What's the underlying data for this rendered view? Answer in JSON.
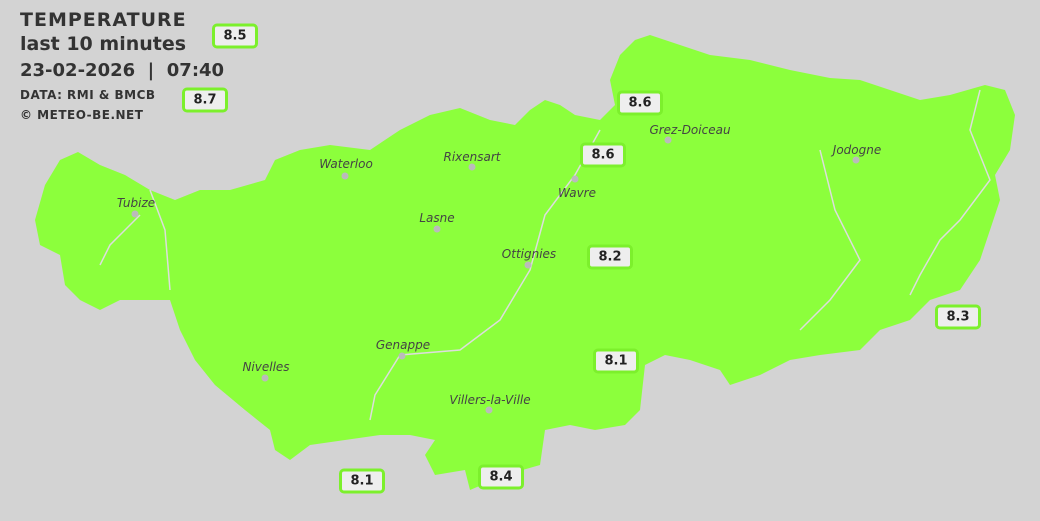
{
  "header": {
    "title": "TEMPERATURE",
    "period": "last 10 minutes",
    "datetime": "23-02-2026  |  07:40",
    "source": "DATA: RMI & BMCB",
    "copyright": "© METEO-BE.NET"
  },
  "colors": {
    "background": "#d3d3d3",
    "land": "#8cff3c",
    "station_border": "#7cf02c",
    "station_fill": "#eeeeee"
  },
  "cities": [
    {
      "name": "Waterloo"
    },
    {
      "name": "Rixensart"
    },
    {
      "name": "Wavre"
    },
    {
      "name": "Grez-Doiceau"
    },
    {
      "name": "Jodogne"
    },
    {
      "name": "Tubize"
    },
    {
      "name": "Lasne"
    },
    {
      "name": "Ottignies"
    },
    {
      "name": "Genappe"
    },
    {
      "name": "Nivelles"
    },
    {
      "name": "Villers-la-Ville"
    }
  ],
  "stations": [
    {
      "value": "8.5"
    },
    {
      "value": "8.7"
    },
    {
      "value": "8.6"
    },
    {
      "value": "8.6"
    },
    {
      "value": "8.2"
    },
    {
      "value": "8.3"
    },
    {
      "value": "8.1"
    },
    {
      "value": "8.1"
    },
    {
      "value": "8.4"
    }
  ]
}
